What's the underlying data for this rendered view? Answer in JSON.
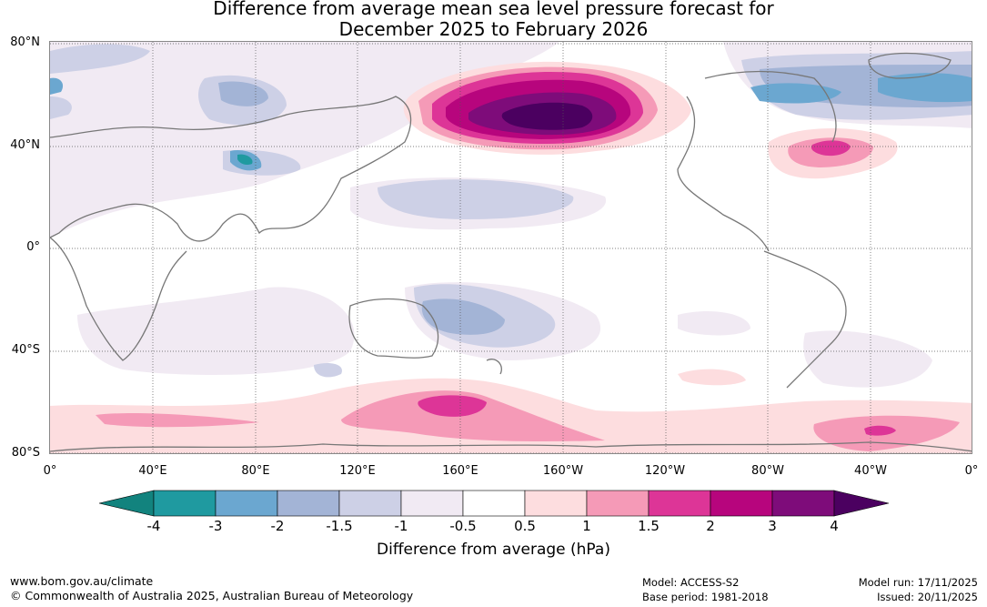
{
  "title": {
    "line1": "Difference from average mean sea level pressure forecast for",
    "line2": "December 2025 to February 2026"
  },
  "map": {
    "lat_labels": [
      "80°N",
      "40°N",
      "0°",
      "40°S",
      "80°S"
    ],
    "lon_labels": [
      "0°",
      "40°E",
      "80°E",
      "120°E",
      "160°E",
      "160°W",
      "120°W",
      "80°W",
      "40°W",
      "0°"
    ],
    "anomaly_regions": [
      {
        "name": "north-pacific-high",
        "peak_hpa": 4
      },
      {
        "name": "north-atlantic-high",
        "peak_hpa": 2
      },
      {
        "name": "southern-ocean-high-160e",
        "peak_hpa": 2
      },
      {
        "name": "southern-ocean-high-40w",
        "peak_hpa": 2
      },
      {
        "name": "arctic-atlantic-low",
        "peak_hpa": -3
      },
      {
        "name": "tibetan-plateau-low",
        "peak_hpa": -4
      },
      {
        "name": "tasman-sea-low",
        "peak_hpa": -2
      }
    ]
  },
  "colorbar": {
    "ticks": [
      "-4",
      "-3",
      "-2",
      "-1.5",
      "-1",
      "-0.5",
      "0.5",
      "1",
      "1.5",
      "2",
      "3",
      "4"
    ],
    "colors": [
      "#12837e",
      "#1f9aa0",
      "#6ba7d0",
      "#a3b4d6",
      "#cdd0e6",
      "#f1eaf3",
      "#ffffff",
      "#fddddf",
      "#f59ab7",
      "#dd3597",
      "#b7057d",
      "#7e0c7a",
      "#4b0060"
    ],
    "label": "Difference from average (hPa)"
  },
  "footer": {
    "url": "www.bom.gov.au/climate",
    "copyright": "© Commonwealth of Australia 2025, Australian Bureau of Meteorology",
    "model": "Model: ACCESS-S2",
    "base_period": "Base period: 1981-2018",
    "model_run": "Model run: 17/11/2025",
    "issued": "Issued: 20/11/2025"
  }
}
